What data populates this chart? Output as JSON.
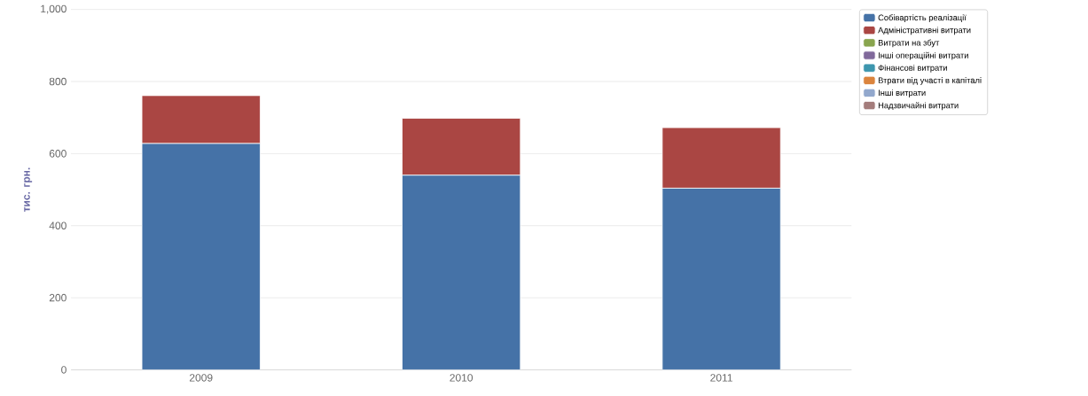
{
  "chart_data": {
    "type": "bar",
    "stacked": true,
    "ylabel": "тис. грн.",
    "categories": [
      "2009",
      "2010",
      "2011"
    ],
    "series": [
      {
        "name": "Собівартість реалізації",
        "color": "#4572a7",
        "values": [
          628,
          540,
          504
        ]
      },
      {
        "name": "Адміністративні витрати",
        "color": "#aa4643",
        "values": [
          133,
          158,
          168
        ]
      },
      {
        "name": "Витрати на збут",
        "color": "#89a54e",
        "values": [
          0,
          0,
          0
        ]
      },
      {
        "name": "Інші операційні витрати",
        "color": "#80699b",
        "values": [
          0,
          0,
          0
        ]
      },
      {
        "name": "Фінансові витрати",
        "color": "#3d96ae",
        "values": [
          0,
          0,
          0
        ]
      },
      {
        "name": "Втрати від участі в капіталі",
        "color": "#db843d",
        "values": [
          0,
          0,
          0
        ]
      },
      {
        "name": "Інші витрати",
        "color": "#92a8cd",
        "values": [
          0,
          0,
          0
        ]
      },
      {
        "name": "Надзвичайні витрати",
        "color": "#a47d7c",
        "values": [
          0,
          0,
          0
        ]
      }
    ],
    "ylim": [
      0,
      1000
    ],
    "yticks": [
      0,
      200,
      400,
      600,
      800,
      {
        "value": 1000,
        "label": "1,000"
      }
    ],
    "grid": "y",
    "legend": "top right"
  }
}
